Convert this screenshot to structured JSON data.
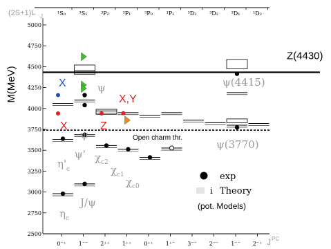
{
  "chart_data": {
    "type": "scatter",
    "ylabel": "M(MeV)",
    "ylim": [
      2500,
      5000
    ],
    "yticks": [
      2500,
      2750,
      3000,
      3250,
      3500,
      3750,
      4000,
      4250,
      4500,
      4750,
      5000
    ],
    "wave_label": "(2S+1)L",
    "wave_label_sub": "J",
    "columns": [
      {
        "wave": "¹S₀",
        "jpc": "0⁻⁺"
      },
      {
        "wave": "³S₁",
        "jpc": "1⁻⁻"
      },
      {
        "wave": "³P₂",
        "jpc": "2⁺⁺"
      },
      {
        "wave": "³P₁",
        "jpc": "1⁺⁺"
      },
      {
        "wave": "³P₀",
        "jpc": "0⁺⁺"
      },
      {
        "wave": "¹P₁",
        "jpc": "1⁺⁻"
      },
      {
        "wave": "³D₃",
        "jpc": "3⁻⁻"
      },
      {
        "wave": "³D₂",
        "jpc": "2⁻⁻"
      },
      {
        "wave": "³D₁",
        "jpc": "1⁻⁻"
      },
      {
        "wave": "¹D₂",
        "jpc": "2⁻⁺"
      }
    ],
    "jpc_axis_label": "J",
    "jpc_axis_label_sup": "PC",
    "theory_lines": [
      {
        "col": 0,
        "mass": 2980
      },
      {
        "col": 0,
        "mass": 3630
      },
      {
        "col": 0,
        "mass": 4060
      },
      {
        "col": 1,
        "mass": 3097
      },
      {
        "col": 1,
        "mass": 3686
      },
      {
        "col": 1,
        "mass": 4100
      },
      {
        "col": 1,
        "mass": 4450
      },
      {
        "col": 2,
        "mass": 3556
      },
      {
        "col": 2,
        "mass": 3970
      },
      {
        "col": 3,
        "mass": 3511
      },
      {
        "col": 3,
        "mass": 3950
      },
      {
        "col": 4,
        "mass": 3415
      },
      {
        "col": 4,
        "mass": 3920
      },
      {
        "col": 5,
        "mass": 3526
      },
      {
        "col": 5,
        "mass": 3950
      },
      {
        "col": 6,
        "mass": 3860
      },
      {
        "col": 7,
        "mass": 3830
      },
      {
        "col": 8,
        "mass": 3800
      },
      {
        "col": 8,
        "mass": 4190
      },
      {
        "col": 9,
        "mass": 3820
      }
    ],
    "theory_boxes": [
      {
        "col": 1,
        "mass_low": 4410,
        "mass_high": 4520
      },
      {
        "col": 8,
        "mass_low": 4475,
        "mass_high": 4585
      },
      {
        "col": 2,
        "mass_low": 3930,
        "mass_high": 3990
      },
      {
        "col": 8,
        "mass_low": 3830,
        "mass_high": 3875
      }
    ],
    "exp_points": [
      {
        "col": 0,
        "mass": 2980
      },
      {
        "col": 0,
        "mass": 3638
      },
      {
        "col": 1,
        "mass": 3097
      },
      {
        "col": 1,
        "mass": 3686
      },
      {
        "col": 1,
        "mass": 4040
      },
      {
        "col": 1,
        "mass": 4160
      },
      {
        "col": 2,
        "mass": 3556
      },
      {
        "col": 3,
        "mass": 3511
      },
      {
        "col": 4,
        "mass": 3415
      },
      {
        "col": 8,
        "mass": 3773
      },
      {
        "col": 8,
        "mass": 4415
      }
    ],
    "exp_open_points": [
      {
        "col": 5,
        "mass": 3526
      }
    ],
    "xyz_points": [
      {
        "col": 0,
        "mass": 3940,
        "color": "#e02020"
      },
      {
        "col": 0,
        "mass": 4160,
        "color": "#2050c0"
      },
      {
        "col": 2,
        "mass": 3940,
        "color": "#e02020"
      },
      {
        "col": 3,
        "mass": 3943,
        "color": "#e02020"
      }
    ],
    "triangles": [
      {
        "col": 1,
        "mass": 4620,
        "color": "#44bb33"
      },
      {
        "col": 1,
        "mass": 4280,
        "color": "#44bb33"
      },
      {
        "col": 1,
        "mass": 4240,
        "color": "#44bb33"
      },
      {
        "col": 3,
        "mass": 3860,
        "color": "#e88a1a"
      }
    ],
    "z4430": {
      "mass": 4433,
      "label": "Z(4430)"
    },
    "open_charm": {
      "mass": 3740,
      "label": "Open charm thr."
    },
    "state_labels": {
      "etac": "η",
      "etac_sub": "c",
      "etac2": "η'",
      "etac2_sub": "c",
      "jpsi": "J/ψ",
      "psi2s": "ψ'",
      "psi_a": "ψ",
      "psi_b": "ψ",
      "chic2": "χ",
      "chic2_sub": "c2",
      "chic1": "χ",
      "chic1_sub": "c1",
      "chic0": "χ",
      "chic0_sub": "c0",
      "psi3770": "ψ(3770)",
      "psi4415": "ψ(4415)"
    },
    "xyz_labels": {
      "X_blue": "X",
      "XY_red": "X,Y",
      "X_red": "X",
      "Z_red": "Z"
    },
    "legend": {
      "exp": "exp",
      "theory": "Theory",
      "theory_note": "(pot. Models)"
    }
  }
}
